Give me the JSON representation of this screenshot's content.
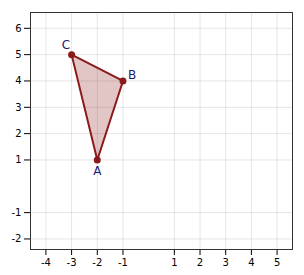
{
  "chart_data": {
    "type": "polygon",
    "x": [
      -2,
      -1,
      -3
    ],
    "values": [
      1,
      4,
      5
    ],
    "annotations": [
      "A",
      "B",
      "C"
    ],
    "color": "#8b1a1a",
    "xlim": [
      -4.6,
      5.6
    ],
    "ylim": [
      -2.4,
      6.6
    ],
    "xticks": [
      -4,
      -3,
      -2,
      -1,
      1,
      2,
      3,
      4,
      5
    ],
    "yticks": [
      -2,
      -1,
      1,
      2,
      3,
      4,
      5,
      6
    ],
    "grid": true
  }
}
